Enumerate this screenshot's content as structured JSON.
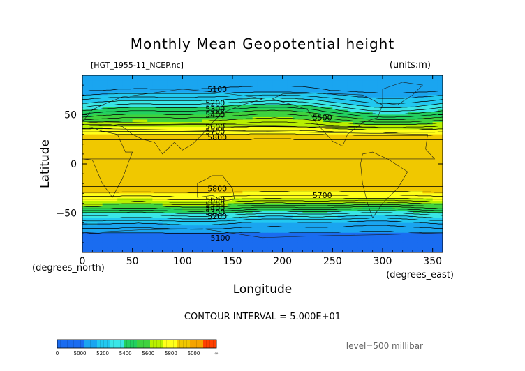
{
  "page": {
    "title": "Monthly Mean Geopotential height",
    "file_label": "[HGT_1955-11_NCEP.nc]",
    "units_label": "(units:m)",
    "xlabel": "Longitude",
    "ylabel": "Latitude",
    "x_unit": "(degrees_east)",
    "y_unit": "(degrees_north)",
    "contour_interval": "CONTOUR INTERVAL = 5.000E+01",
    "level": "level=500 millibar"
  },
  "colors": {
    "frame": "#000000",
    "contour": "#000000",
    "land": "#1a1a1a"
  },
  "chart_data": {
    "type": "heatmap",
    "title": "Monthly Mean Geopotential height",
    "xlabel": "Longitude",
    "ylabel": "Latitude",
    "x_range": [
      0,
      360
    ],
    "y_range": [
      -90,
      90
    ],
    "x_ticks": [
      0,
      50,
      100,
      150,
      200,
      250,
      300,
      350
    ],
    "y_ticks": [
      50,
      0,
      -50
    ],
    "units": "m",
    "level_hPa": 500,
    "contour_interval": 50,
    "color_levels": [
      {
        "min": 0,
        "max": 5000,
        "color": "#1a6cf0"
      },
      {
        "min": 5000,
        "max": 5100,
        "color": "#1a6cf0"
      },
      {
        "min": 5100,
        "max": 5200,
        "color": "#1aa5f0"
      },
      {
        "min": 5200,
        "max": 5300,
        "color": "#22c8f0"
      },
      {
        "min": 5300,
        "max": 5400,
        "color": "#3ae6e6"
      },
      {
        "min": 5400,
        "max": 5500,
        "color": "#22d060"
      },
      {
        "min": 5500,
        "max": 5600,
        "color": "#3fd23f"
      },
      {
        "min": 5600,
        "max": 5700,
        "color": "#b8f000"
      },
      {
        "min": 5700,
        "max": 5800,
        "color": "#ffff1a"
      },
      {
        "min": 5800,
        "max": 5900,
        "color": "#f0c800"
      },
      {
        "min": 5900,
        "max": 6000,
        "color": "#f5a300"
      },
      {
        "min": 6000,
        "max": 6100,
        "color": "#ff4000"
      }
    ],
    "colorbar_labels": [
      "0",
      "5000",
      "5200",
      "5400",
      "5600",
      "5800",
      "6000",
      "∞"
    ],
    "zonal_profile": [
      {
        "lat": 90,
        "value": 5110
      },
      {
        "lat": 75,
        "value": 5150
      },
      {
        "lat": 65,
        "value": 5280
      },
      {
        "lat": 55,
        "value": 5420
      },
      {
        "lat": 45,
        "value": 5570
      },
      {
        "lat": 35,
        "value": 5720
      },
      {
        "lat": 28,
        "value": 5830
      },
      {
        "lat": 20,
        "value": 5880
      },
      {
        "lat": 0,
        "value": 5890
      },
      {
        "lat": -20,
        "value": 5880
      },
      {
        "lat": -28,
        "value": 5810
      },
      {
        "lat": -35,
        "value": 5720
      },
      {
        "lat": -42,
        "value": 5570
      },
      {
        "lat": -50,
        "value": 5380
      },
      {
        "lat": -60,
        "value": 5200
      },
      {
        "lat": -72,
        "value": 5080
      },
      {
        "lat": -90,
        "value": 5060
      }
    ],
    "contour_labels": [
      {
        "text": "5100",
        "lon": 125,
        "lat": 76
      },
      {
        "text": "5200",
        "lon": 123,
        "lat": 62
      },
      {
        "text": "5300",
        "lon": 123,
        "lat": 56
      },
      {
        "text": "5400",
        "lon": 123,
        "lat": 50
      },
      {
        "text": "5500",
        "lon": 230,
        "lat": 47
      },
      {
        "text": "5600",
        "lon": 123,
        "lat": 38
      },
      {
        "text": "5700",
        "lon": 123,
        "lat": 33
      },
      {
        "text": "5800",
        "lon": 125,
        "lat": 27
      },
      {
        "text": "5800",
        "lon": 125,
        "lat": -25
      },
      {
        "text": "5700",
        "lon": 230,
        "lat": -32
      },
      {
        "text": "5600",
        "lon": 123,
        "lat": -36
      },
      {
        "text": "5500",
        "lon": 123,
        "lat": -41
      },
      {
        "text": "5400",
        "lon": 123,
        "lat": -45
      },
      {
        "text": "5300",
        "lon": 123,
        "lat": -49
      },
      {
        "text": "5200",
        "lon": 125,
        "lat": -53
      },
      {
        "text": "5100",
        "lon": 128,
        "lat": -75
      }
    ]
  }
}
